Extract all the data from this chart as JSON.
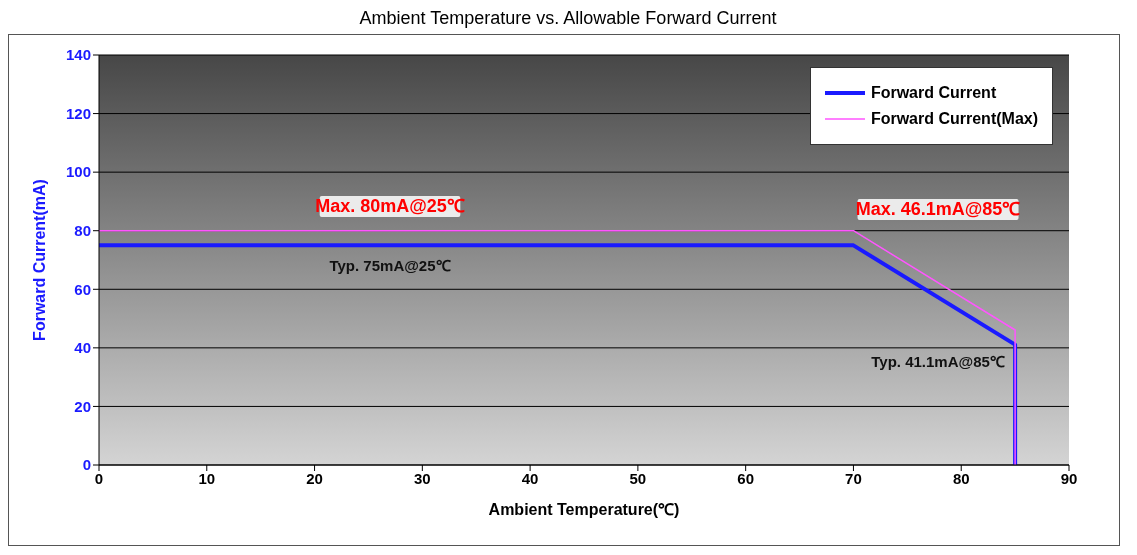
{
  "chart_data": {
    "type": "line",
    "title": "Ambient Temperature vs. Allowable Forward Current",
    "xlabel": "Ambient Temperature(℃)",
    "ylabel": "Forward Current(mA)",
    "xlim": [
      0,
      90
    ],
    "xticks": [
      0,
      10,
      20,
      30,
      40,
      50,
      60,
      70,
      80,
      90
    ],
    "ylim": [
      0,
      140
    ],
    "yticks": [
      0,
      20,
      40,
      60,
      80,
      100,
      120,
      140
    ],
    "grid": "y",
    "legend": "top right",
    "marker": "none",
    "line_style": "solid",
    "series": [
      {
        "name": "Forward Current",
        "color": "#1a1aff",
        "x": [
          0,
          70,
          85,
          85
        ],
        "values": [
          75,
          75,
          41.1,
          0
        ]
      },
      {
        "name": "Forward Current(Max)",
        "color": "#ff55ff",
        "x": [
          0,
          70,
          85,
          85
        ],
        "values": [
          80,
          80,
          46.1,
          0
        ]
      }
    ],
    "annotations": [
      "Max. 80mA@25℃",
      "Typ. 75mA@25℃",
      "Max. 46.1mA@85℃",
      "Typ. 41.1mA@85℃"
    ]
  }
}
